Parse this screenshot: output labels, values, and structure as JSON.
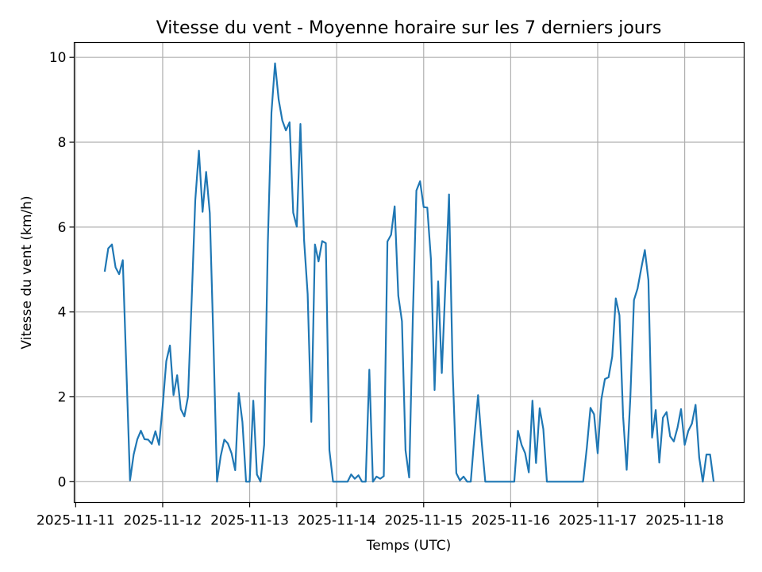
{
  "chart_data": {
    "type": "line",
    "title": "Vitesse du vent - Moyenne horaire sur les 7 derniers jours",
    "xlabel": "Temps (UTC)",
    "ylabel": "Vitesse du vent (km/h)",
    "xlim": [
      "2025-11-10 23:36",
      "2025-11-18 16:24"
    ],
    "ylim": [
      -0.49,
      10.35
    ],
    "grid": true,
    "line_color": "#1f77b4",
    "x_ticks": [
      "2025-11-11",
      "2025-11-12",
      "2025-11-13",
      "2025-11-14",
      "2025-11-15",
      "2025-11-16",
      "2025-11-17",
      "2025-11-18"
    ],
    "y_ticks": [
      0,
      2,
      4,
      6,
      8,
      10
    ],
    "y_tick_labels": [
      "0",
      "2",
      "4",
      "6",
      "8",
      "10"
    ],
    "x": [
      "2025-11-11 08:00",
      "2025-11-11 09:00",
      "2025-11-11 10:00",
      "2025-11-11 11:00",
      "2025-11-11 12:00",
      "2025-11-11 13:00",
      "2025-11-11 14:00",
      "2025-11-11 15:00",
      "2025-11-11 16:00",
      "2025-11-11 17:00",
      "2025-11-11 18:00",
      "2025-11-11 19:00",
      "2025-11-11 20:00",
      "2025-11-11 21:00",
      "2025-11-11 22:00",
      "2025-11-11 23:00",
      "2025-11-12 00:00",
      "2025-11-12 01:00",
      "2025-11-12 02:00",
      "2025-11-12 03:00",
      "2025-11-12 04:00",
      "2025-11-12 05:00",
      "2025-11-12 06:00",
      "2025-11-12 07:00",
      "2025-11-12 08:00",
      "2025-11-12 09:00",
      "2025-11-12 10:00",
      "2025-11-12 11:00",
      "2025-11-12 12:00",
      "2025-11-12 13:00",
      "2025-11-12 14:00",
      "2025-11-12 15:00",
      "2025-11-12 16:00",
      "2025-11-12 17:00",
      "2025-11-12 18:00",
      "2025-11-12 19:00",
      "2025-11-12 20:00",
      "2025-11-12 21:00",
      "2025-11-12 22:00",
      "2025-11-12 23:00",
      "2025-11-13 00:00",
      "2025-11-13 01:00",
      "2025-11-13 02:00",
      "2025-11-13 03:00",
      "2025-11-13 04:00",
      "2025-11-13 05:00",
      "2025-11-13 06:00",
      "2025-11-13 07:00",
      "2025-11-13 08:00",
      "2025-11-13 09:00",
      "2025-11-13 10:00",
      "2025-11-13 11:00",
      "2025-11-13 12:00",
      "2025-11-13 13:00",
      "2025-11-13 14:00",
      "2025-11-13 15:00",
      "2025-11-13 16:00",
      "2025-11-13 17:00",
      "2025-11-13 18:00",
      "2025-11-13 19:00",
      "2025-11-13 20:00",
      "2025-11-13 21:00",
      "2025-11-13 22:00",
      "2025-11-13 23:00",
      "2025-11-14 00:00",
      "2025-11-14 01:00",
      "2025-11-14 02:00",
      "2025-11-14 03:00",
      "2025-11-14 04:00",
      "2025-11-14 05:00",
      "2025-11-14 06:00",
      "2025-11-14 07:00",
      "2025-11-14 08:00",
      "2025-11-14 09:00",
      "2025-11-14 10:00",
      "2025-11-14 11:00",
      "2025-11-14 12:00",
      "2025-11-14 13:00",
      "2025-11-14 14:00",
      "2025-11-14 15:00",
      "2025-11-14 16:00",
      "2025-11-14 17:00",
      "2025-11-14 18:00",
      "2025-11-14 19:00",
      "2025-11-14 20:00",
      "2025-11-14 21:00",
      "2025-11-14 22:00",
      "2025-11-14 23:00",
      "2025-11-15 00:00",
      "2025-11-15 01:00",
      "2025-11-15 02:00",
      "2025-11-15 03:00",
      "2025-11-15 04:00",
      "2025-11-15 05:00",
      "2025-11-15 06:00",
      "2025-11-15 07:00",
      "2025-11-15 08:00",
      "2025-11-15 09:00",
      "2025-11-15 10:00",
      "2025-11-15 11:00",
      "2025-11-15 12:00",
      "2025-11-15 13:00",
      "2025-11-15 14:00",
      "2025-11-15 15:00",
      "2025-11-15 16:00",
      "2025-11-15 17:00",
      "2025-11-15 18:00",
      "2025-11-15 19:00",
      "2025-11-15 20:00",
      "2025-11-15 21:00",
      "2025-11-15 22:00",
      "2025-11-15 23:00",
      "2025-11-16 00:00",
      "2025-11-16 01:00",
      "2025-11-16 02:00",
      "2025-11-16 03:00",
      "2025-11-16 04:00",
      "2025-11-16 05:00",
      "2025-11-16 06:00",
      "2025-11-16 07:00",
      "2025-11-16 08:00",
      "2025-11-16 09:00",
      "2025-11-16 10:00",
      "2025-11-16 11:00",
      "2025-11-16 12:00",
      "2025-11-16 13:00",
      "2025-11-16 14:00",
      "2025-11-16 15:00",
      "2025-11-16 16:00",
      "2025-11-16 17:00",
      "2025-11-16 18:00",
      "2025-11-16 19:00",
      "2025-11-16 20:00",
      "2025-11-16 21:00",
      "2025-11-16 22:00",
      "2025-11-16 23:00",
      "2025-11-17 00:00",
      "2025-11-17 01:00",
      "2025-11-17 02:00",
      "2025-11-17 03:00",
      "2025-11-17 04:00",
      "2025-11-17 05:00",
      "2025-11-17 06:00",
      "2025-11-17 07:00",
      "2025-11-17 08:00",
      "2025-11-17 09:00",
      "2025-11-17 10:00",
      "2025-11-17 11:00",
      "2025-11-17 12:00",
      "2025-11-17 13:00",
      "2025-11-17 14:00",
      "2025-11-17 15:00",
      "2025-11-17 16:00",
      "2025-11-17 17:00",
      "2025-11-17 18:00",
      "2025-11-17 19:00",
      "2025-11-17 20:00",
      "2025-11-17 21:00",
      "2025-11-17 22:00",
      "2025-11-17 23:00",
      "2025-11-18 00:00",
      "2025-11-18 01:00",
      "2025-11-18 02:00",
      "2025-11-18 03:00",
      "2025-11-18 04:00",
      "2025-11-18 05:00",
      "2025-11-18 06:00",
      "2025-11-18 07:00",
      "2025-11-18 08:00"
    ],
    "values": [
      4.95,
      5.5,
      5.59,
      5.05,
      4.89,
      5.22,
      2.6,
      0.03,
      0.64,
      1.0,
      1.2,
      1.0,
      0.99,
      0.89,
      1.19,
      0.87,
      1.77,
      2.84,
      3.21,
      2.04,
      2.51,
      1.71,
      1.54,
      2.01,
      4.3,
      6.63,
      7.8,
      6.36,
      7.3,
      6.33,
      3.3,
      0.0,
      0.6,
      0.99,
      0.9,
      0.67,
      0.27,
      2.09,
      1.41,
      0.0,
      0.0,
      1.91,
      0.17,
      0.0,
      0.87,
      5.6,
      8.7,
      9.86,
      9.0,
      8.51,
      8.28,
      8.47,
      6.34,
      6.01,
      8.43,
      5.69,
      4.42,
      1.41,
      5.59,
      5.19,
      5.67,
      5.62,
      0.74,
      0.0,
      0,
      0,
      0,
      0,
      0.17,
      0.07,
      0.15,
      0,
      0,
      2.64,
      0,
      0.12,
      0.07,
      0.13,
      5.66,
      5.82,
      6.49,
      4.38,
      3.78,
      0.74,
      0.1,
      3.88,
      6.86,
      7.08,
      6.47,
      6.46,
      5.25,
      2.16,
      4.72,
      2.56,
      4.67,
      6.77,
      2.6,
      0.2,
      0.03,
      0.12,
      0,
      0,
      1.07,
      2.04,
      0.94,
      0,
      0,
      0,
      0,
      0,
      0,
      0,
      0,
      0,
      1.2,
      0.87,
      0.67,
      0.22,
      1.91,
      0.44,
      1.73,
      1.24,
      0,
      0,
      0,
      0,
      0,
      0,
      0,
      0,
      0,
      0,
      0,
      0.8,
      1.74,
      1.59,
      0.67,
      1.94,
      2.42,
      2.46,
      2.95,
      4.32,
      3.92,
      1.54,
      0.28,
      1.97,
      4.28,
      4.55,
      5.02,
      5.46,
      4.75,
      1.04,
      1.69,
      0.45,
      1.51,
      1.64,
      1.07,
      0.95,
      1.27,
      1.71,
      0.87,
      1.2,
      1.37,
      1.81,
      0.57,
      0,
      0.64,
      0.64,
      0
    ]
  }
}
